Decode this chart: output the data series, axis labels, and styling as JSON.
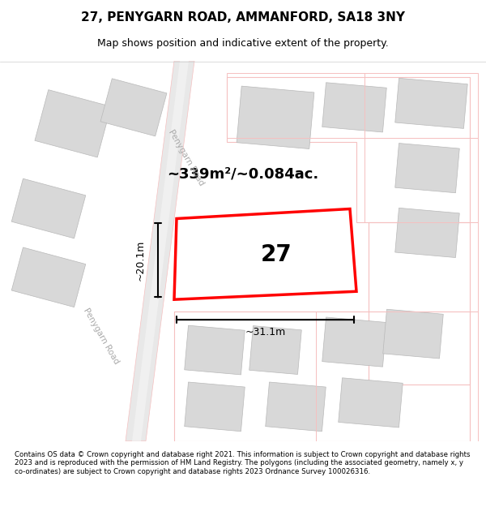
{
  "title": "27, PENYGARN ROAD, AMMANFORD, SA18 3NY",
  "subtitle": "Map shows position and indicative extent of the property.",
  "footer": "Contains OS data © Crown copyright and database right 2021. This information is subject to Crown copyright and database rights 2023 and is reproduced with the permission of HM Land Registry. The polygons (including the associated geometry, namely x, y co-ordinates) are subject to Crown copyright and database rights 2023 Ordnance Survey 100026316.",
  "bg_color": "#f5f5f5",
  "map_bg": "#ffffff",
  "road_color_light": "#f5c0c0",
  "road_color_dark": "#e08080",
  "building_fill": "#d8d8d8",
  "building_edge": "#b0b0b0",
  "highlight_fill": "#ffffff",
  "highlight_edge": "#ff0000",
  "highlight_linewidth": 2.5,
  "area_text": "~339m²/~0.084ac.",
  "number_text": "27",
  "dim_h": "~20.1m",
  "dim_w": "~31.1m",
  "road_label_penygarn_diag": "Penygarn Road",
  "road_label_penygarn_diag2": "Penygarn Road"
}
